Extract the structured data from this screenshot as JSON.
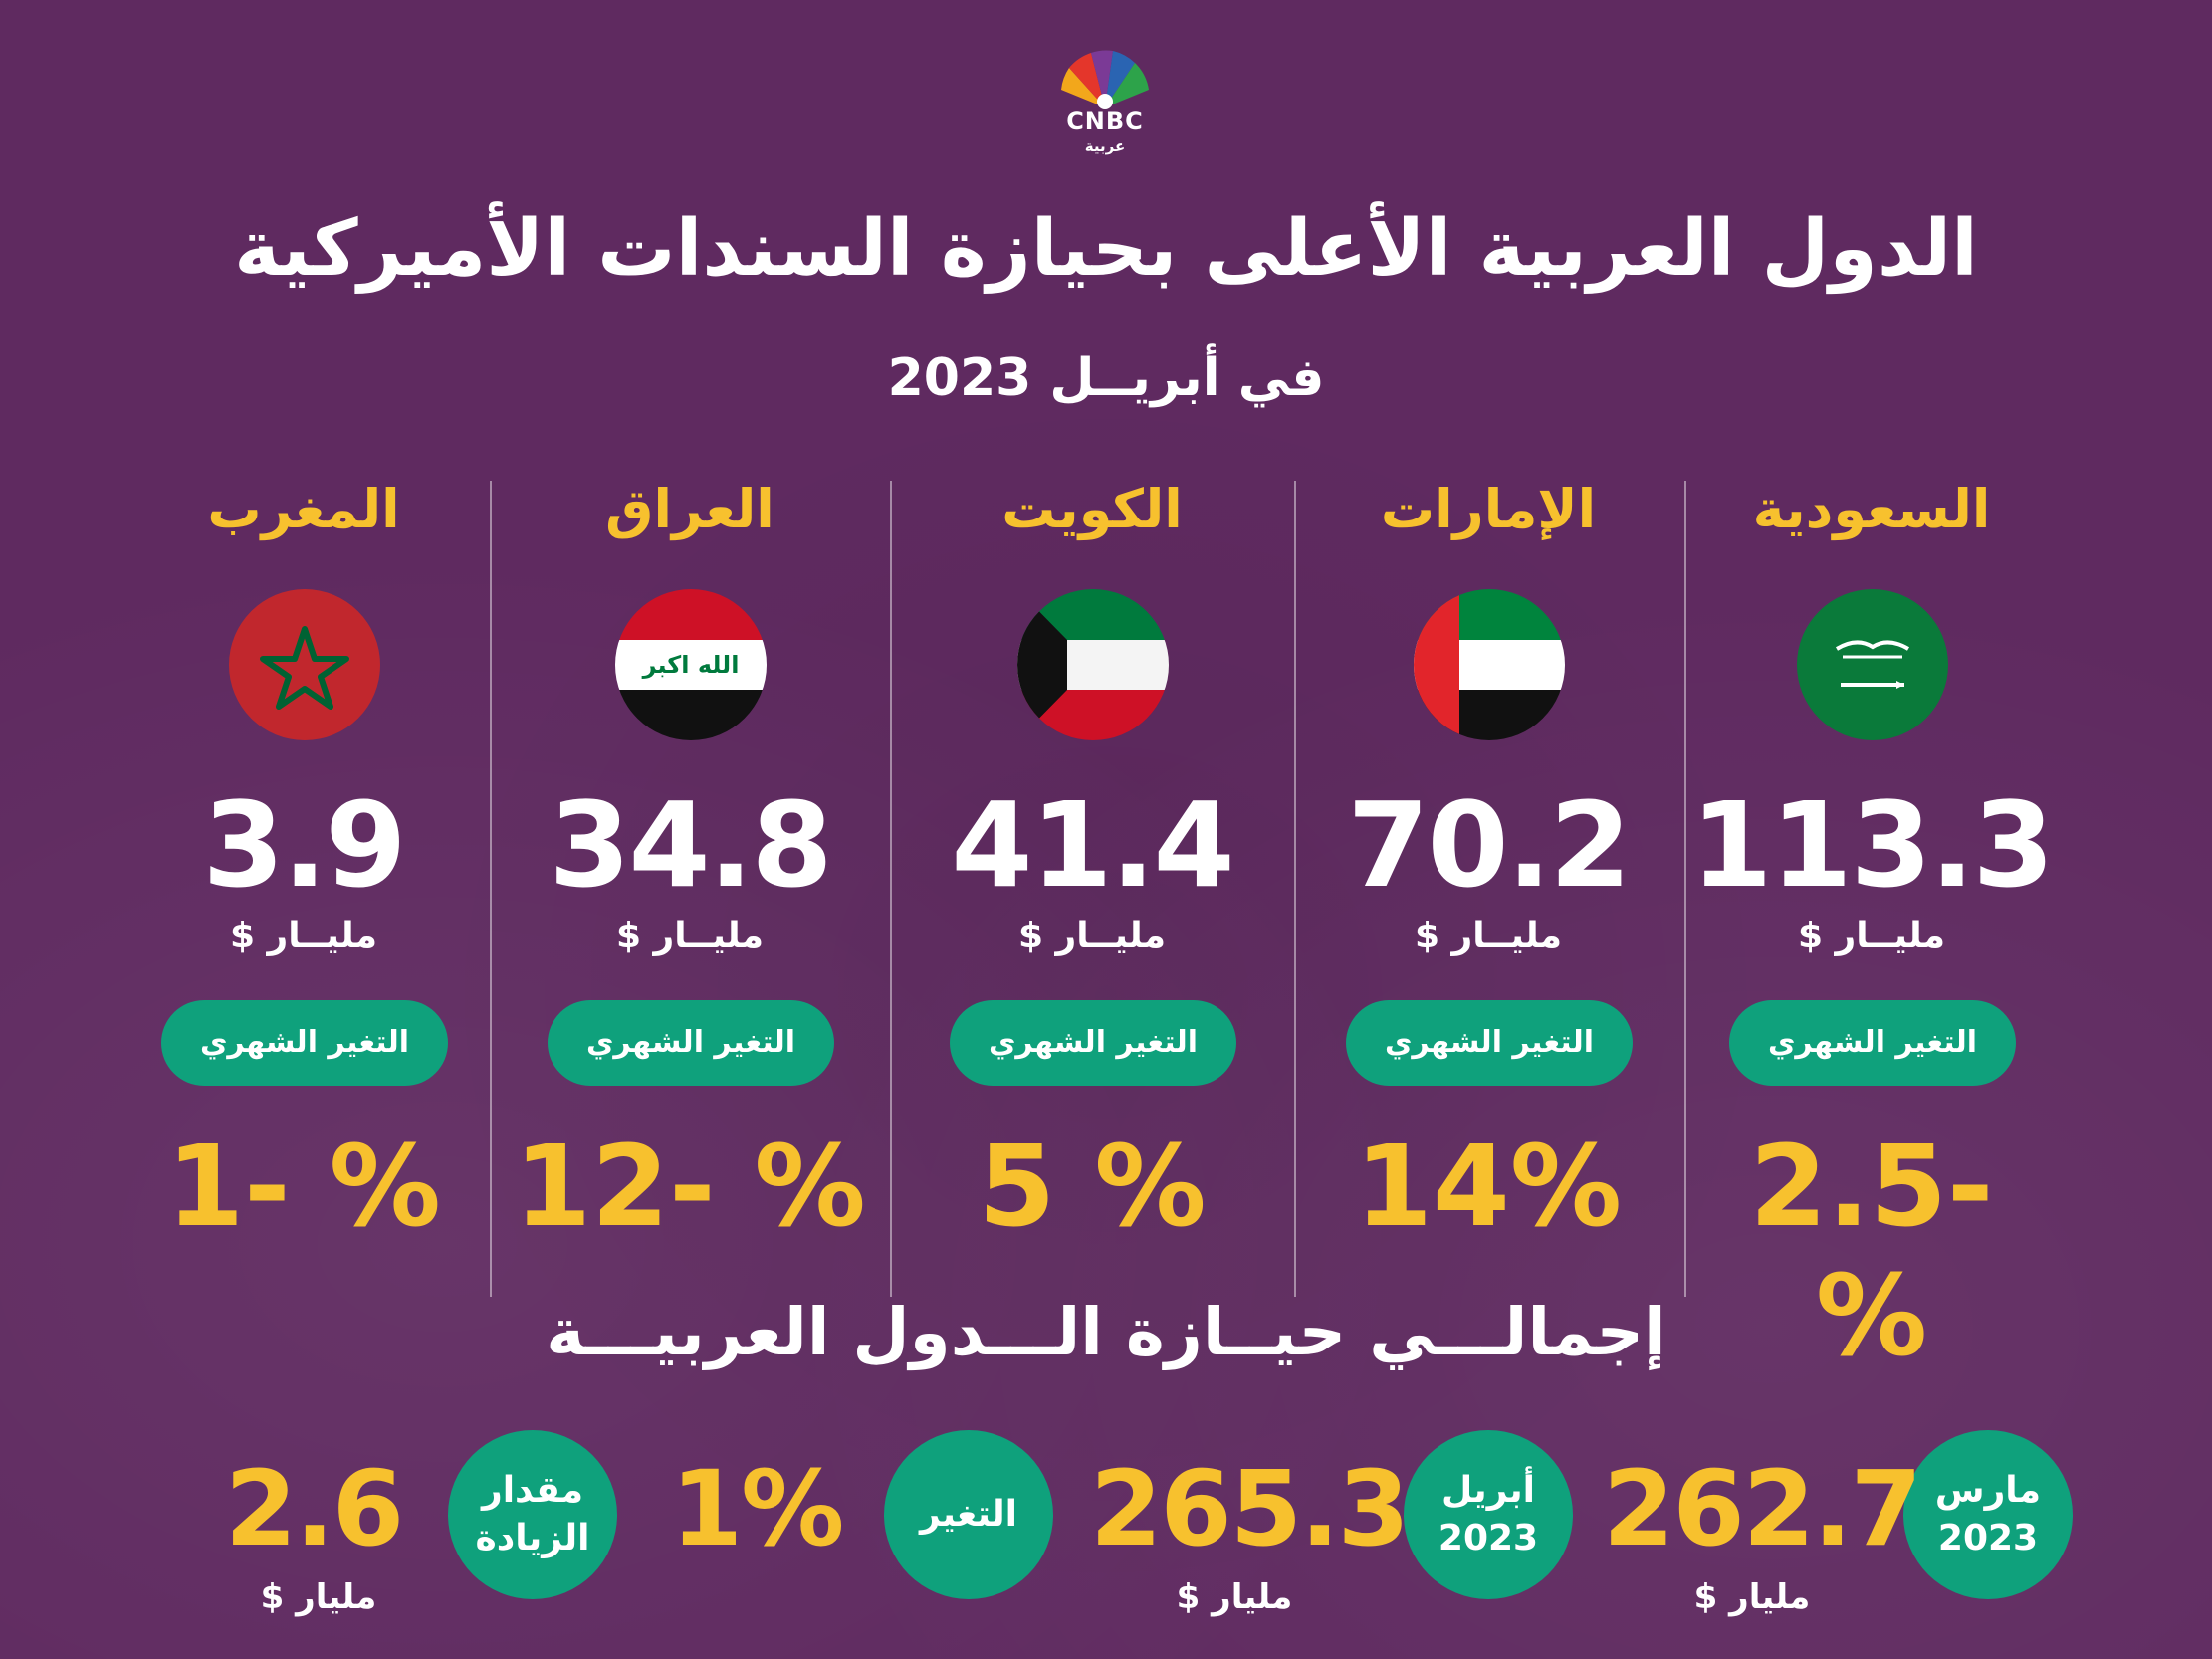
{
  "brand": {
    "logo_text": "CNBC",
    "logo_sub": "عربية"
  },
  "header": {
    "title": "الدول العربية الأعلى بحيازة السندات الأميركية",
    "subtitle": "في أبريــل 2023"
  },
  "countries": [
    {
      "name": "السعودية",
      "flag": "saudi-arabia-flag",
      "value": "113.3",
      "unit": "مليــار $",
      "pill": "التغير الشهري",
      "change": "2.5- %"
    },
    {
      "name": "الإمارات",
      "flag": "uae-flag",
      "value": "70.2",
      "unit": "مليــار $",
      "pill": "التغير الشهري",
      "change": "14%"
    },
    {
      "name": "الكويت",
      "flag": "kuwait-flag",
      "value": "41.4",
      "unit": "مليــار $",
      "pill": "التغير الشهري",
      "change": "5 %"
    },
    {
      "name": "العراق",
      "flag": "iraq-flag",
      "value": "34.8",
      "unit": "مليــار $",
      "pill": "التغير الشهري",
      "change": "12- %"
    },
    {
      "name": "المغرب",
      "flag": "morocco-flag",
      "value": "3.9",
      "unit": "مليــار $",
      "pill": "التغير الشهري",
      "change": "1- %"
    }
  ],
  "iraq_flag_text": "الله اكبر",
  "totals": {
    "title": "إجمالـــي حيــازة الـــدول العربيـــة",
    "march": {
      "label_line1": "مارس",
      "label_line2": "2023",
      "value": "262.7",
      "unit": "مليار $"
    },
    "april": {
      "label_line1": "أبريل",
      "label_line2": "2023",
      "value": "265.3",
      "unit": "مليار $"
    },
    "change": {
      "label": "التغير",
      "value": "1%"
    },
    "increase": {
      "label_line1": "مقدار",
      "label_line2": "الزيادة",
      "value": "2.6",
      "unit": "مليار $"
    }
  },
  "colors": {
    "background": "#5f2a60",
    "accent_yellow": "#f7c12e",
    "pill_green": "#0fa17c"
  }
}
